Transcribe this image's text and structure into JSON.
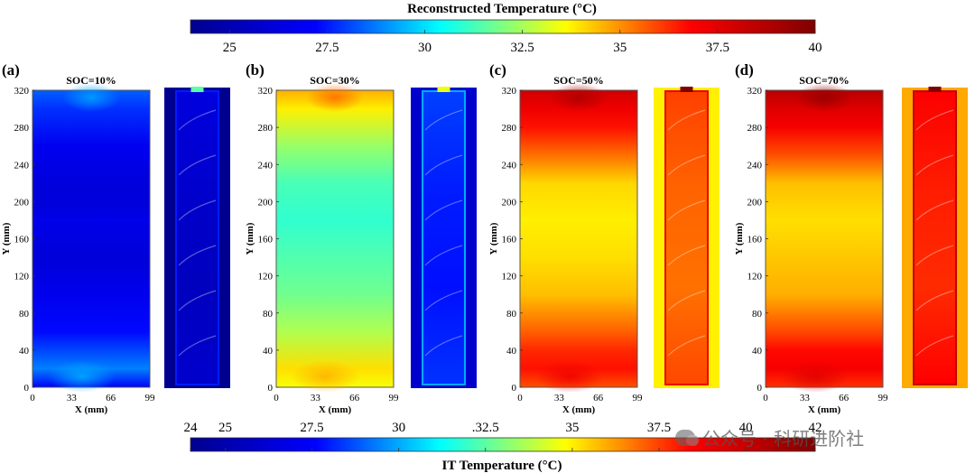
{
  "chart_data": [
    {
      "type": "heatmap",
      "panel_label": "(a)",
      "title": "SOC=10%",
      "xlabel": "X (mm)",
      "ylabel": "Y (mm)",
      "xticks": [
        0,
        33,
        66,
        99
      ],
      "yticks": [
        0,
        40,
        80,
        120,
        160,
        200,
        240,
        280,
        320
      ],
      "xlim": [
        0,
        99
      ],
      "ylim": [
        0,
        320
      ],
      "colorbar": "Reconstructed Temperature (°C)",
      "y": [
        0,
        20,
        60,
        100,
        140,
        180,
        200,
        220,
        260,
        300,
        320
      ],
      "values": [
        27.0,
        28.8,
        27.3,
        26.7,
        26.1,
        26.6,
        26.1,
        26.2,
        26.8,
        27.8,
        28.4
      ]
    },
    {
      "type": "heatmap",
      "panel_label": "(b)",
      "title": "SOC=30%",
      "xlabel": "X (mm)",
      "ylabel": "Y (mm)",
      "xticks": [
        0,
        33,
        66,
        99
      ],
      "yticks": [
        0,
        40,
        80,
        120,
        160,
        200,
        240,
        280,
        320
      ],
      "xlim": [
        0,
        99
      ],
      "ylim": [
        0,
        320
      ],
      "colorbar": "Reconstructed Temperature (°C)",
      "y": [
        0,
        20,
        60,
        100,
        140,
        180,
        220,
        260,
        300,
        320
      ],
      "values": [
        33.5,
        34.0,
        32.6,
        31.8,
        31.4,
        31.0,
        31.3,
        32.3,
        33.8,
        34.6
      ]
    },
    {
      "type": "heatmap",
      "panel_label": "(c)",
      "title": "SOC=50%",
      "xlabel": "X (mm)",
      "ylabel": "Y (mm)",
      "xticks": [
        0,
        33,
        66,
        99
      ],
      "yticks": [
        0,
        40,
        80,
        120,
        160,
        200,
        240,
        280,
        320
      ],
      "xlim": [
        0,
        99
      ],
      "ylim": [
        0,
        320
      ],
      "colorbar": "Reconstructed Temperature (°C)",
      "y": [
        0,
        20,
        40,
        60,
        100,
        140,
        180,
        220,
        250,
        280,
        300,
        320
      ],
      "values": [
        35.8,
        36.6,
        36.3,
        35.6,
        34.4,
        34.0,
        33.8,
        34.1,
        35.4,
        36.6,
        37.2,
        38.0
      ]
    },
    {
      "type": "heatmap",
      "panel_label": "(d)",
      "title": "SOC=70%",
      "xlabel": "X (mm)",
      "ylabel": "Y (mm)",
      "xticks": [
        0,
        33,
        66,
        99
      ],
      "yticks": [
        0,
        40,
        80,
        120,
        160,
        200,
        240,
        280,
        320
      ],
      "xlim": [
        0,
        99
      ],
      "ylim": [
        0,
        320
      ],
      "colorbar": "Reconstructed Temperature (°C)",
      "y": [
        0,
        20,
        40,
        60,
        100,
        140,
        180,
        220,
        250,
        280,
        300,
        320
      ],
      "values": [
        36.2,
        37.0,
        36.7,
        35.9,
        34.6,
        34.3,
        34.0,
        34.4,
        35.8,
        37.0,
        37.6,
        38.6
      ]
    }
  ],
  "ir_panels": [
    {
      "panel": "(a)",
      "values": [
        26.5,
        26.0,
        25.5,
        26.0
      ]
    },
    {
      "panel": "(b)",
      "values": [
        28.5,
        28.0,
        27.8,
        28.3
      ]
    },
    {
      "panel": "(c)",
      "values": [
        37.5,
        37.0,
        36.8,
        37.4
      ]
    },
    {
      "panel": "(d)",
      "values": [
        38.5,
        38.0,
        37.8,
        38.4
      ]
    }
  ],
  "colorbars": {
    "top": {
      "title": "Reconstructed Temperature (°C)",
      "min": 24,
      "max": 40,
      "ticks": [
        25,
        27.5,
        30,
        32.5,
        35,
        37.5,
        40
      ],
      "tick_labels": [
        "25",
        "27.5",
        "30",
        "32.5",
        "35",
        "37.5",
        "40"
      ]
    },
    "bottom": {
      "title": "IT Temperature (°C)",
      "min": 24,
      "max": 42,
      "ticks": [
        24,
        25,
        27.5,
        30,
        32.5,
        35,
        37.5,
        40,
        42
      ],
      "tick_labels": [
        "24",
        "25",
        "27.5",
        "30",
        ".32.5",
        "35",
        "37.5",
        "40",
        "42"
      ]
    }
  },
  "colormap": [
    "#00008f",
    "#0000ff",
    "#00ffff",
    "#ffff00",
    "#ff0000",
    "#800000"
  ],
  "watermark": "公众号 · 科研进阶社"
}
